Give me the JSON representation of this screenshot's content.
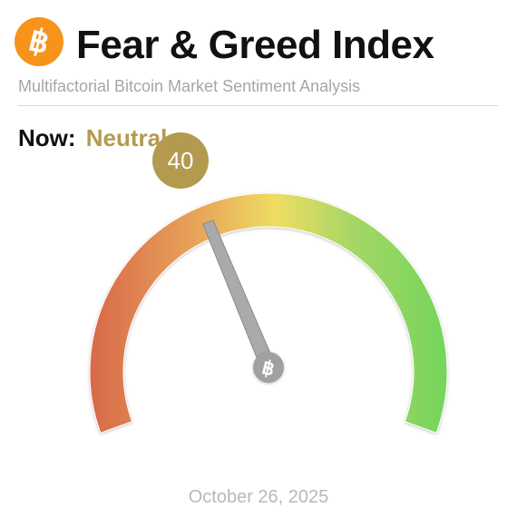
{
  "header": {
    "title": "Fear & Greed Index",
    "subtitle": "Multifactorial Bitcoin Market Sentiment Analysis",
    "logo_icon": "bitcoin-icon"
  },
  "sentiment": {
    "now_label": "Now:",
    "classification": "Neutral",
    "value": "40",
    "value_num": 40,
    "scale_min": 0,
    "scale_max": 100,
    "accent_color": "#b39a4f"
  },
  "gauge": {
    "colors": [
      "#d9694a",
      "#e8a95a",
      "#eedd62",
      "#a3d666",
      "#74d55a"
    ],
    "hub_icon": "bitcoin-icon"
  },
  "date": "October 26, 2025"
}
